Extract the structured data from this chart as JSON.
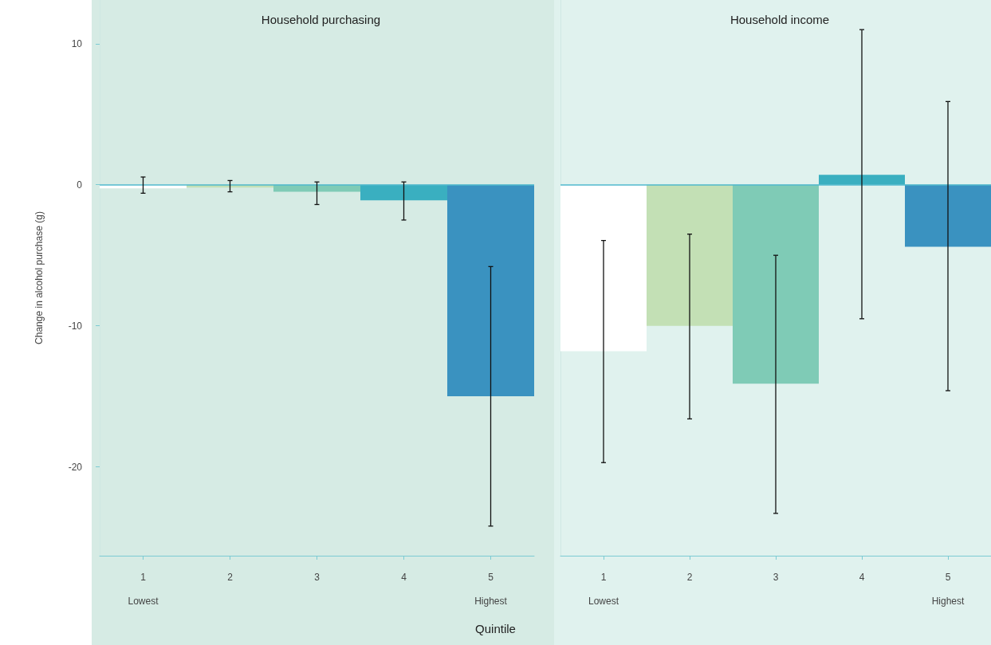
{
  "chart_data": [
    {
      "type": "bar",
      "title": "Household purchasing",
      "ylabel": "Change in alcohol purchase (g)",
      "xlabel": "Quintile",
      "categories": [
        "1\nLowest",
        "2",
        "3",
        "4",
        "5\nHighest"
      ],
      "values": [
        -0.25,
        -0.2,
        -0.5,
        -1.1,
        -15.0
      ],
      "colors": [
        "#ffffff",
        "#c3e0b5",
        "#7fcbb6",
        "#3aafc0",
        "#3a92c0"
      ],
      "errors": [
        [
          -0.6,
          0.55
        ],
        [
          -0.5,
          0.3
        ],
        [
          -1.4,
          0.2
        ],
        [
          -2.5,
          0.2
        ],
        [
          -24.2,
          -5.8
        ]
      ],
      "ylim": [
        -26.3,
        13.1
      ],
      "yticks": [
        -20,
        -10,
        0,
        10
      ],
      "ref_lines": [
        {
          "axis": "y",
          "value": 0,
          "color": "#4fb8cc"
        }
      ],
      "grid": false
    },
    {
      "type": "bar",
      "title": "Household income",
      "categories": [
        "1\nLowest",
        "2",
        "3",
        "4",
        "5\nHighest"
      ],
      "values": [
        -11.8,
        -10.0,
        -14.1,
        0.7,
        -4.4
      ],
      "colors": [
        "#ffffff",
        "#c3e0b5",
        "#7fcbb6",
        "#3aafc0",
        "#3a92c0"
      ],
      "errors": [
        [
          -19.7,
          -3.95
        ],
        [
          -16.6,
          -3.5
        ],
        [
          -23.3,
          -5.0
        ],
        [
          -9.5,
          11.0
        ],
        [
          -14.6,
          5.9
        ]
      ],
      "ylim": [
        -26.3,
        13.1
      ],
      "yticks": [
        -20,
        -10,
        0,
        10
      ],
      "ref_lines": [
        {
          "axis": "y",
          "value": 0,
          "color": "#4fb8cc"
        }
      ],
      "grid": false,
      "tick_labels": "x"
    }
  ]
}
